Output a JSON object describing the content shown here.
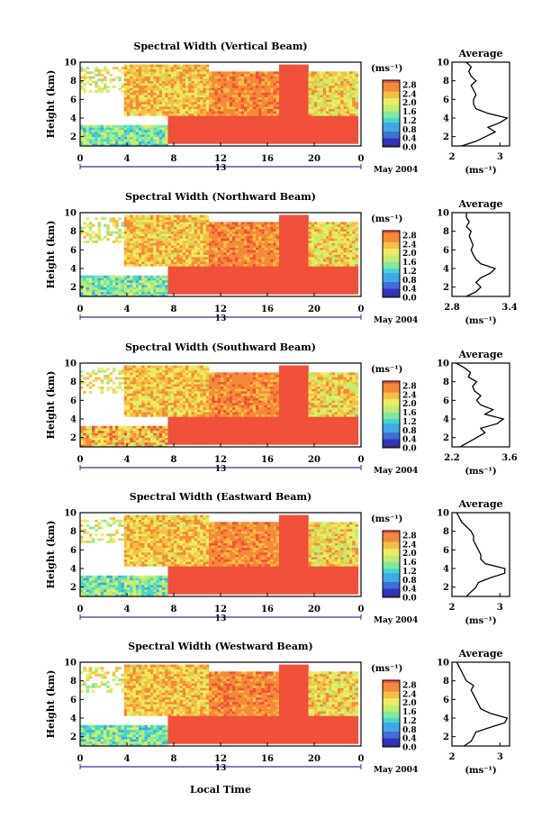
{
  "figure": {
    "xlabel": "Local Time",
    "date_label": "May 2004",
    "day_label": "13",
    "x_ticks": [
      "0",
      "4",
      "8",
      "12",
      "16",
      "20",
      "0"
    ],
    "y_ticks": [
      "2",
      "4",
      "6",
      "8",
      "10"
    ],
    "ylabel": "Height (km)",
    "colorbar_unit": "(ms⁻¹)",
    "colorbar_ticks": [
      "0.0",
      "0.4",
      "0.8",
      "1.2",
      "1.6",
      "2.0",
      "2.4",
      "2.8"
    ],
    "average_title": "Average",
    "average_xlabel": "(ms⁻¹)"
  },
  "colors": {
    "scale": [
      "#303060",
      "#3030c0",
      "#3f6fd8",
      "#3fa8e8",
      "#40d8d0",
      "#80e8a0",
      "#c0ec70",
      "#ecec60",
      "#f4c040",
      "#f48a38",
      "#f0503a"
    ]
  },
  "chart_data": [
    {
      "type": "heatmap",
      "title": "Spectral Width (Vertical Beam)",
      "xlim": [
        0,
        24
      ],
      "ylim": [
        1,
        10
      ],
      "clim": [
        0.0,
        3.0
      ],
      "xlabel": "Local Time",
      "ylabel": "Height (km)",
      "average": {
        "type": "line",
        "title": "Average",
        "xlim": [
          2.0,
          3.2
        ],
        "ylim": [
          1,
          10
        ],
        "x_ticks": [
          "2",
          "3"
        ],
        "heights": [
          1.0,
          1.5,
          2.0,
          2.5,
          3.0,
          3.5,
          4.0,
          4.5,
          5.0,
          5.5,
          6.0,
          6.5,
          7.0,
          7.5,
          8.0,
          8.5,
          9.0,
          9.5,
          10.0
        ],
        "values": [
          2.2,
          2.5,
          2.7,
          2.9,
          2.75,
          3.0,
          3.15,
          2.75,
          2.5,
          2.45,
          2.45,
          2.5,
          2.45,
          2.4,
          2.5,
          2.4,
          2.35,
          2.4,
          2.3
        ]
      }
    },
    {
      "type": "heatmap",
      "title": "Spectral Width (Northward Beam)",
      "xlim": [
        0,
        24
      ],
      "ylim": [
        1,
        10
      ],
      "clim": [
        0.0,
        3.0
      ],
      "xlabel": "Local Time",
      "ylabel": "Height (km)",
      "average": {
        "type": "line",
        "title": "Average",
        "xlim": [
          2.8,
          3.4
        ],
        "ylim": [
          1,
          10
        ],
        "x_ticks": [
          "2.8",
          "3.4"
        ],
        "heights": [
          1.0,
          1.5,
          2.0,
          2.5,
          3.0,
          3.5,
          4.0,
          4.5,
          5.0,
          5.5,
          6.0,
          6.5,
          7.0,
          7.5,
          8.0,
          8.5,
          9.0,
          9.5,
          10.0
        ],
        "values": [
          2.95,
          3.05,
          3.1,
          3.05,
          3.1,
          3.2,
          3.25,
          3.1,
          3.05,
          3.02,
          3.0,
          3.02,
          3.0,
          2.98,
          3.0,
          2.95,
          2.98,
          2.95,
          2.95
        ]
      }
    },
    {
      "type": "heatmap",
      "title": "Spectral Width (Southward Beam)",
      "xlim": [
        0,
        24
      ],
      "ylim": [
        1,
        10
      ],
      "clim": [
        0.0,
        3.0
      ],
      "xlabel": "Local Time",
      "ylabel": "Height (km)",
      "average": {
        "type": "line",
        "title": "Average",
        "xlim": [
          2.2,
          3.6
        ],
        "ylim": [
          1,
          10
        ],
        "x_ticks": [
          "2.2",
          "3.6"
        ],
        "heights": [
          1.0,
          1.5,
          2.0,
          2.5,
          3.0,
          3.5,
          4.0,
          4.5,
          5.0,
          5.5,
          6.0,
          6.5,
          7.0,
          7.5,
          8.0,
          8.5,
          9.0,
          9.5,
          10.0
        ],
        "values": [
          2.4,
          2.6,
          2.8,
          3.0,
          2.9,
          3.3,
          3.45,
          3.0,
          3.2,
          2.9,
          2.8,
          2.9,
          2.75,
          2.7,
          2.8,
          2.6,
          2.65,
          2.5,
          2.3
        ]
      }
    },
    {
      "type": "heatmap",
      "title": "Spectral Width (Eastward Beam)",
      "xlim": [
        0,
        24
      ],
      "ylim": [
        1,
        10
      ],
      "clim": [
        0.0,
        3.0
      ],
      "xlabel": "Local Time",
      "ylabel": "Height (km)",
      "average": {
        "type": "line",
        "title": "Average",
        "xlim": [
          2.0,
          3.2
        ],
        "ylim": [
          1,
          10
        ],
        "x_ticks": [
          "2",
          "3"
        ],
        "heights": [
          1.0,
          1.5,
          2.0,
          2.5,
          3.0,
          3.5,
          4.0,
          4.5,
          5.0,
          5.5,
          6.0,
          6.5,
          7.0,
          7.5,
          8.0,
          8.5,
          9.0,
          9.5,
          10.0
        ],
        "values": [
          2.3,
          2.4,
          2.5,
          2.55,
          2.8,
          3.1,
          3.1,
          2.7,
          2.6,
          2.6,
          2.55,
          2.5,
          2.45,
          2.45,
          2.4,
          2.3,
          2.2,
          2.15,
          2.1
        ]
      }
    },
    {
      "type": "heatmap",
      "title": "Spectral Width (Westward Beam)",
      "xlim": [
        0,
        24
      ],
      "ylim": [
        1,
        10
      ],
      "clim": [
        0.0,
        3.0
      ],
      "xlabel": "Local Time",
      "ylabel": "Height (km)",
      "average": {
        "type": "line",
        "title": "Average",
        "xlim": [
          2.0,
          3.2
        ],
        "ylim": [
          1,
          10
        ],
        "x_ticks": [
          "2",
          "3"
        ],
        "heights": [
          1.0,
          1.5,
          2.0,
          2.5,
          3.0,
          3.5,
          4.0,
          4.5,
          5.0,
          5.5,
          6.0,
          6.5,
          7.0,
          7.5,
          8.0,
          8.5,
          9.0,
          9.5,
          10.0
        ],
        "values": [
          2.25,
          2.4,
          2.45,
          2.5,
          2.8,
          3.1,
          3.15,
          2.8,
          2.6,
          2.55,
          2.5,
          2.45,
          2.4,
          2.45,
          2.3,
          2.25,
          2.2,
          2.15,
          2.1
        ]
      }
    }
  ]
}
